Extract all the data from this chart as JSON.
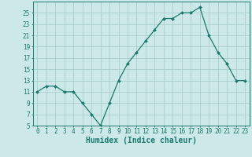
{
  "x": [
    0,
    1,
    2,
    3,
    4,
    5,
    6,
    7,
    8,
    9,
    10,
    11,
    12,
    13,
    14,
    15,
    16,
    17,
    18,
    19,
    20,
    21,
    22,
    23
  ],
  "y": [
    11,
    12,
    12,
    11,
    11,
    9,
    7,
    5,
    9,
    13,
    16,
    18,
    20,
    22,
    24,
    24,
    25,
    25,
    26,
    21,
    18,
    16,
    13,
    13
  ],
  "xlabel": "Humidex (Indice chaleur)",
  "ylim": [
    5,
    27
  ],
  "xlim": [
    -0.5,
    23.5
  ],
  "yticks": [
    5,
    7,
    9,
    11,
    13,
    15,
    17,
    19,
    21,
    23,
    25
  ],
  "xticks": [
    0,
    1,
    2,
    3,
    4,
    5,
    6,
    7,
    8,
    9,
    10,
    11,
    12,
    13,
    14,
    15,
    16,
    17,
    18,
    19,
    20,
    21,
    22,
    23
  ],
  "line_color": "#1a7a6e",
  "marker_color": "#1a7a6e",
  "bg_color": "#cce8e8",
  "grid_color": "#aacece",
  "axis_color": "#1a7a6e",
  "tick_color": "#1a7a6e",
  "label_color": "#1a7a6e",
  "xlabel_fontsize": 7,
  "tick_fontsize": 5.5
}
